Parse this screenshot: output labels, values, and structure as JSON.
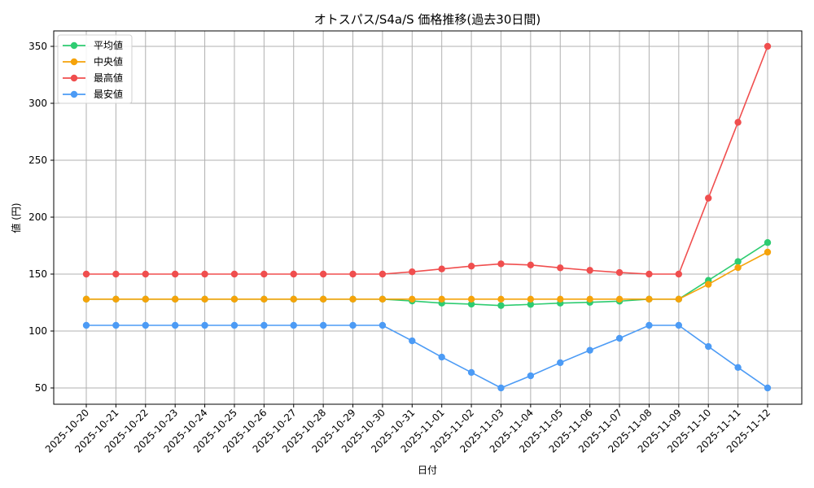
{
  "chart_data": {
    "type": "line",
    "title": "オトスパス/S4a/S 価格推移(過去30日間)",
    "xlabel": "日付",
    "ylabel": "値 (円)",
    "ylim": [
      35,
      365
    ],
    "yticks": [
      50,
      100,
      150,
      200,
      250,
      300,
      350
    ],
    "grid": true,
    "legend_position": "upper left",
    "categories": [
      "2025-10-20",
      "2025-10-21",
      "2025-10-22",
      "2025-10-23",
      "2025-10-24",
      "2025-10-25",
      "2025-10-26",
      "2025-10-27",
      "2025-10-28",
      "2025-10-29",
      "2025-10-30",
      "2025-10-31",
      "2025-11-01",
      "2025-11-02",
      "2025-11-03",
      "2025-11-04",
      "2025-11-05",
      "2025-11-06",
      "2025-11-07",
      "2025-11-08",
      "2025-11-09",
      "2025-11-10",
      "2025-11-11",
      "2025-11-12"
    ],
    "series": [
      {
        "name": "平均値",
        "color": "#2ecc71",
        "values": [
          128,
          128,
          128,
          128,
          128,
          128,
          128,
          128,
          128,
          128,
          128,
          126.4,
          124.5,
          123.6,
          122.4,
          123.4,
          124.5,
          125.2,
          126.2,
          128,
          128,
          144.5,
          161,
          177.7
        ]
      },
      {
        "name": "中央値",
        "color": "#f5a30a",
        "values": [
          128,
          128,
          128,
          128,
          128,
          128,
          128,
          128,
          128,
          128,
          128,
          128,
          128,
          128,
          128,
          128,
          128,
          128,
          128,
          128,
          128,
          141,
          155.7,
          169.3
        ]
      },
      {
        "name": "最高値",
        "color": "#f04e4e",
        "values": [
          150,
          150,
          150,
          150,
          150,
          150,
          150,
          150,
          150,
          150,
          150,
          152,
          154.5,
          157,
          159,
          158,
          155.5,
          153.3,
          151.4,
          150,
          150,
          216.7,
          283.3,
          350
        ]
      },
      {
        "name": "最安値",
        "color": "#4c9bf5",
        "values": [
          105,
          105,
          105,
          105,
          105,
          105,
          105,
          105,
          105,
          105,
          105,
          91.4,
          77.1,
          63.6,
          50,
          60.7,
          72.2,
          83.1,
          93.6,
          105,
          105,
          86.4,
          68,
          50
        ]
      }
    ]
  }
}
